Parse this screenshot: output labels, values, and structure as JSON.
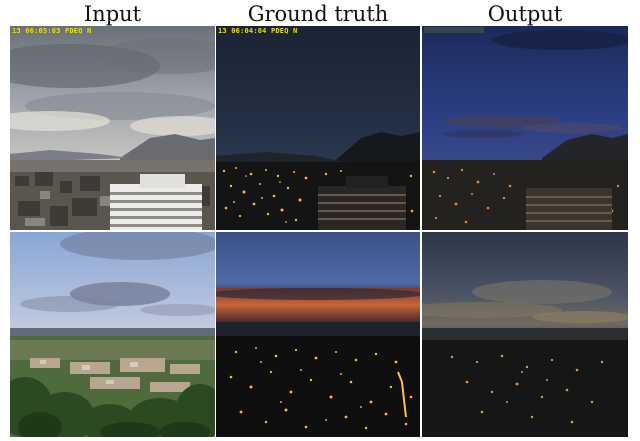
{
  "headers": {
    "input": "Input",
    "ground_truth": "Ground truth",
    "output": "Output"
  },
  "timestamps": {
    "row1_input": "13 06:05:03 PDEQ N",
    "row1_ground_truth": "13 06:04:04 PDEQ N"
  },
  "colors": {
    "background": "#ffffff",
    "timestamp": "#e8e000",
    "city_light": "#ffb347"
  }
}
